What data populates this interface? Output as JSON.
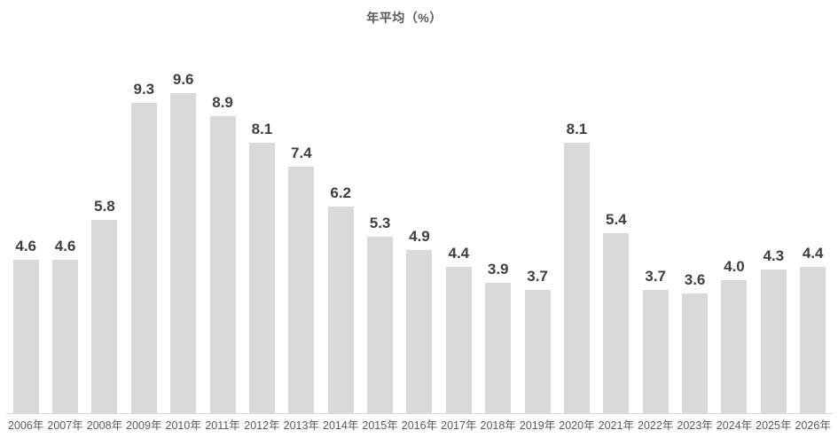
{
  "chart": {
    "title": "年平均（%）"
  },
  "chart_data": {
    "type": "bar",
    "title": "年平均（%）",
    "categories": [
      "2006年",
      "2007年",
      "2008年",
      "2009年",
      "2010年",
      "2011年",
      "2012年",
      "2013年",
      "2014年",
      "2015年",
      "2016年",
      "2017年",
      "2018年",
      "2019年",
      "2020年",
      "2021年",
      "2022年",
      "2023年",
      "2024年",
      "2025年",
      "2026年"
    ],
    "values": [
      4.6,
      4.6,
      5.8,
      9.3,
      9.6,
      8.9,
      8.1,
      7.4,
      6.2,
      5.3,
      4.9,
      4.4,
      3.9,
      3.7,
      8.1,
      5.4,
      3.7,
      3.6,
      4.0,
      4.3,
      4.4
    ],
    "value_label_decimals": 1,
    "xlabel": "",
    "ylabel": "",
    "ylim": [
      0,
      10
    ],
    "grid": false,
    "legend": false,
    "data_labels": true,
    "colors": {
      "bar": "#d9d9d9",
      "value_label": "#3f3f3f",
      "axis_label": "#595959",
      "axis_line": "#d9d9d9",
      "background": "#ffffff"
    }
  }
}
